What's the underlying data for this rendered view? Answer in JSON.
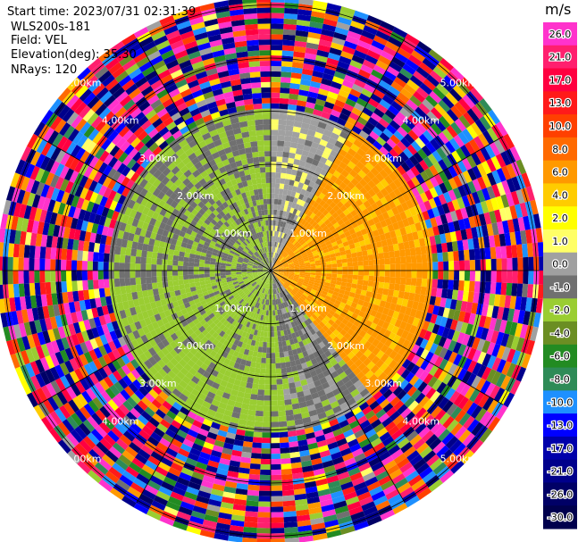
{
  "header": {
    "start_time": "Start time: 2023/07/31 02:31:39",
    "instrument": "WLS200s-181",
    "field": "Field: VEL",
    "elevation": "Elevation(deg): 35.30",
    "nrays": "NRays: 120"
  },
  "colorbar": {
    "unit": "m/s",
    "ticks": [
      "26.0",
      "21.0",
      "17.0",
      "13.0",
      "10.0",
      "8.0",
      "6.0",
      "4.0",
      "2.0",
      "1.0",
      "0.0",
      "-1.0",
      "-2.0",
      "-4.0",
      "-6.0",
      "-8.0",
      "-10.0",
      "-13.0",
      "-17.0",
      "-21.0",
      "-26.0",
      "-30.0"
    ],
    "colors": [
      "#ff33cc",
      "#ff1f6e",
      "#ff0040",
      "#ff1a1a",
      "#ff4000",
      "#ff6a00",
      "#ff9900",
      "#ffcc00",
      "#ffff00",
      "#ffff66",
      "#a0a0a0",
      "#707070",
      "#9acd32",
      "#6b8e23",
      "#228b22",
      "#2e8b57",
      "#1e90ff",
      "#0000ff",
      "#0000aa",
      "#00008b",
      "#000066",
      "#00004d"
    ]
  },
  "chart_data": {
    "type": "polar-ppi",
    "field": "VEL",
    "units": "m/s",
    "nrays": 120,
    "elevation_deg": 35.3,
    "range_rings_km": [
      1.0,
      2.0,
      3.0,
      4.0,
      5.0
    ],
    "range_ring_labels": [
      "1.00km",
      "2.00km",
      "3.00km",
      "4.00km",
      "5.00km"
    ],
    "spokes_deg": [
      0,
      30,
      60,
      90,
      120,
      150,
      180,
      210,
      240,
      270,
      300,
      330
    ],
    "pattern": {
      "inner_zone_km": 3.1,
      "sectors": [
        {
          "from_deg": 0,
          "to_deg": 30,
          "range_km": 3.1,
          "value_ms": -0.5
        },
        {
          "from_deg": 30,
          "to_deg": 140,
          "range_km": 3.1,
          "value_ms": 4.5
        },
        {
          "from_deg": 140,
          "to_deg": 175,
          "range_km": 3.1,
          "value_ms": -1.5
        },
        {
          "from_deg": 175,
          "to_deg": 265,
          "range_km": 3.1,
          "value_ms": -2.5
        },
        {
          "from_deg": 265,
          "to_deg": 360,
          "range_km": 3.1,
          "value_ms": -2.0
        }
      ],
      "outer_zone": "noise"
    }
  }
}
